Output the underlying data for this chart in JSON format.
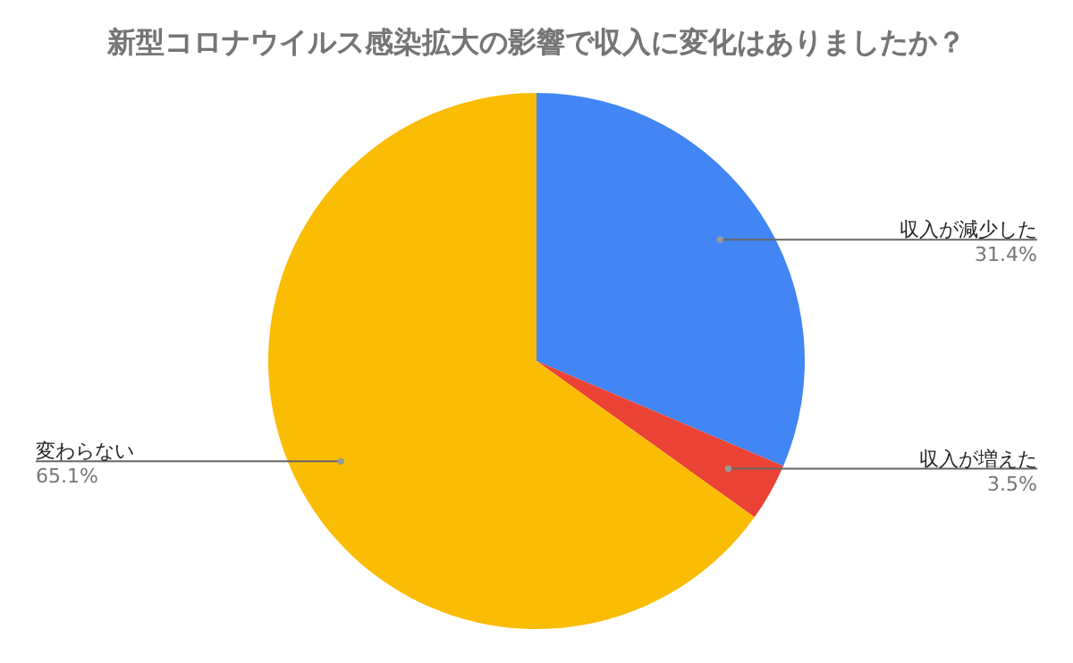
{
  "chart_data": {
    "type": "pie",
    "title": "新型コロナウイルス感染拡大の影響で収入に変化はありましたか？",
    "categories": [
      "収入が減少した",
      "収入が増えた",
      "変わらない"
    ],
    "values": [
      31.4,
      3.5,
      65.1
    ],
    "value_labels": [
      "31.4%",
      "3.5%",
      "65.1%"
    ],
    "colors": [
      "#4285f4",
      "#ea4335",
      "#fbbc04"
    ]
  }
}
